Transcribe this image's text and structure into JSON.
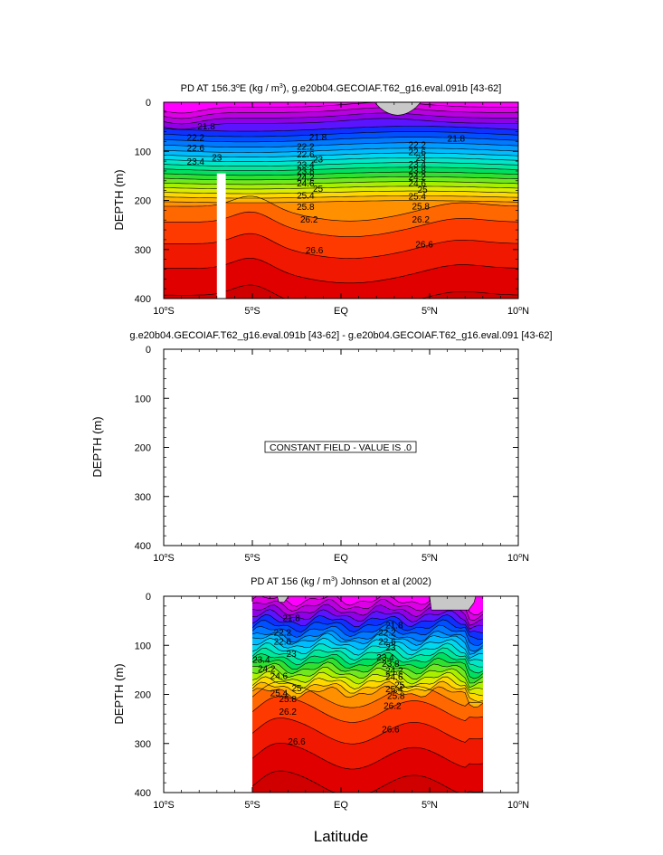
{
  "chart_data": [
    {
      "type": "contour",
      "title_parts": [
        "PD AT 156.3",
        "o",
        "E (kg / m",
        "3",
        "), g.e20b04.GECOIAF.T62_g16.eval.091b [43-62]"
      ],
      "xlabel": "",
      "ylabel": "DEPTH (m)",
      "xlim": [
        -10,
        10
      ],
      "ylim": [
        400,
        0
      ],
      "x_ticks": [
        -10,
        -5,
        0,
        5,
        10
      ],
      "x_tick_labels": [
        [
          "10",
          "o",
          "S"
        ],
        [
          "5",
          "o",
          "S"
        ],
        [
          "EQ",
          "",
          ""
        ],
        [
          "5",
          "o",
          "N"
        ],
        [
          "10",
          "o",
          "N"
        ]
      ],
      "y_ticks": [
        0,
        100,
        200,
        300,
        400
      ],
      "y_tick_labels": [
        "0",
        "100",
        "200",
        "300",
        "400"
      ],
      "data_x_range": [
        -10,
        10
      ],
      "masked_columns": [
        [
          -7.0,
          -6.5
        ]
      ],
      "gray_caps": [
        {
          "x": [
            1.9,
            4.5
          ],
          "depth": 30
        }
      ],
      "contour_labels": [
        {
          "text": "21.8",
          "x": -7.6,
          "y": 50
        },
        {
          "text": "21.8",
          "x": -1.3,
          "y": 72
        },
        {
          "text": "21.8",
          "x": 6.5,
          "y": 75
        },
        {
          "text": "22.2",
          "x": -8.2,
          "y": 73
        },
        {
          "text": "22.6",
          "x": -8.2,
          "y": 94
        },
        {
          "text": "23",
          "x": -7.0,
          "y": 113
        },
        {
          "text": "23.4",
          "x": -8.2,
          "y": 122
        },
        {
          "text": "22.2",
          "x": -2.0,
          "y": 91
        },
        {
          "text": "22.6",
          "x": -2.0,
          "y": 107
        },
        {
          "text": "23",
          "x": -1.3,
          "y": 117
        },
        {
          "text": "23.4",
          "x": -2.0,
          "y": 128
        },
        {
          "text": "23.8",
          "x": -2.0,
          "y": 141
        },
        {
          "text": "24.2",
          "x": -2.0,
          "y": 154
        },
        {
          "text": "24.6",
          "x": -2.0,
          "y": 166
        },
        {
          "text": "25",
          "x": -1.3,
          "y": 177
        },
        {
          "text": "25.4",
          "x": -2.0,
          "y": 191
        },
        {
          "text": "25.8",
          "x": -2.0,
          "y": 214
        },
        {
          "text": "26.2",
          "x": -1.8,
          "y": 240
        },
        {
          "text": "26.6",
          "x": -1.5,
          "y": 302
        },
        {
          "text": "22.2",
          "x": 4.3,
          "y": 88
        },
        {
          "text": "22.6",
          "x": 4.3,
          "y": 102
        },
        {
          "text": "23",
          "x": 4.5,
          "y": 114
        },
        {
          "text": "23.4",
          "x": 4.3,
          "y": 127
        },
        {
          "text": "23.8",
          "x": 4.3,
          "y": 140
        },
        {
          "text": "24.2",
          "x": 4.3,
          "y": 153
        },
        {
          "text": "24.6",
          "x": 4.3,
          "y": 166
        },
        {
          "text": "25",
          "x": 4.6,
          "y": 179
        },
        {
          "text": "25.4",
          "x": 4.3,
          "y": 193
        },
        {
          "text": "25.8",
          "x": 4.5,
          "y": 213
        },
        {
          "text": "26.2",
          "x": 4.5,
          "y": 240
        },
        {
          "text": "26.6",
          "x": 4.7,
          "y": 290
        }
      ]
    },
    {
      "type": "contour",
      "title": "g.e20b04.GECOIAF.T62_g16.eval.091b [43-62] - g.e20b04.GECOIAF.T62_g16.eval.091 [43-62]",
      "ylabel": "DEPTH (m)",
      "xlim": [
        -10,
        10
      ],
      "ylim": [
        400,
        0
      ],
      "x_ticks": [
        -10,
        -5,
        0,
        5,
        10
      ],
      "x_tick_labels": [
        [
          "10",
          "o",
          "S"
        ],
        [
          "5",
          "o",
          "S"
        ],
        [
          "EQ",
          "",
          ""
        ],
        [
          "5",
          "o",
          "N"
        ],
        [
          "10",
          "o",
          "N"
        ]
      ],
      "y_ticks": [
        0,
        100,
        200,
        300,
        400
      ],
      "y_tick_labels": [
        "0",
        "100",
        "200",
        "300",
        "400"
      ],
      "constant_field_label": "CONSTANT FIELD - VALUE IS .0",
      "constant_value": 0.0
    },
    {
      "type": "contour",
      "title_parts": [
        "PD AT 156 (kg / m",
        "3",
        ") Johnson et al (2002)"
      ],
      "ylabel": "DEPTH (m)",
      "xlabel": "Latitude",
      "xlim": [
        -10,
        10
      ],
      "ylim": [
        400,
        0
      ],
      "x_ticks": [
        -10,
        -5,
        0,
        5,
        10
      ],
      "x_tick_labels": [
        [
          "10",
          "o",
          "S"
        ],
        [
          "5",
          "o",
          "S"
        ],
        [
          "EQ",
          "",
          ""
        ],
        [
          "5",
          "o",
          "N"
        ],
        [
          "10",
          "o",
          "N"
        ]
      ],
      "y_ticks": [
        0,
        100,
        200,
        300,
        400
      ],
      "y_tick_labels": [
        "0",
        "100",
        "200",
        "300",
        "400"
      ],
      "data_x_range": [
        -5,
        8
      ],
      "gray_caps": [
        {
          "x": [
            -3.6,
            -2.8
          ],
          "depth": 12
        },
        {
          "x": [
            5.0,
            7.6
          ],
          "depth": 28
        }
      ],
      "contour_labels": [
        {
          "text": "21.8",
          "x": -2.8,
          "y": 45
        },
        {
          "text": "22.2",
          "x": -3.3,
          "y": 75
        },
        {
          "text": "22.6",
          "x": -3.3,
          "y": 93
        },
        {
          "text": "23",
          "x": -2.8,
          "y": 118
        },
        {
          "text": "23.4",
          "x": -4.5,
          "y": 130
        },
        {
          "text": "24.2",
          "x": -4.2,
          "y": 148
        },
        {
          "text": "24.6",
          "x": -3.5,
          "y": 163
        },
        {
          "text": "25",
          "x": -2.5,
          "y": 188
        },
        {
          "text": "25.4",
          "x": -3.5,
          "y": 198
        },
        {
          "text": "25.8",
          "x": -3.0,
          "y": 210
        },
        {
          "text": "26.2",
          "x": -3.0,
          "y": 236
        },
        {
          "text": "26.6",
          "x": -2.5,
          "y": 297
        },
        {
          "text": "21.8",
          "x": 3.0,
          "y": 60
        },
        {
          "text": "22.2",
          "x": 2.6,
          "y": 75
        },
        {
          "text": "22.6",
          "x": 2.6,
          "y": 93
        },
        {
          "text": "23",
          "x": 2.8,
          "y": 105
        },
        {
          "text": "23.4",
          "x": 2.5,
          "y": 125
        },
        {
          "text": "23.8",
          "x": 2.8,
          "y": 138
        },
        {
          "text": "24.2",
          "x": 3.0,
          "y": 152
        },
        {
          "text": "24.6",
          "x": 3.0,
          "y": 165
        },
        {
          "text": "25",
          "x": 3.3,
          "y": 182
        },
        {
          "text": "25.4",
          "x": 3.0,
          "y": 190
        },
        {
          "text": "25.8",
          "x": 3.1,
          "y": 204
        },
        {
          "text": "26.2",
          "x": 2.9,
          "y": 224
        },
        {
          "text": "26.6",
          "x": 2.8,
          "y": 272
        }
      ]
    }
  ],
  "colors": {
    "layers": [
      "#ff00ff",
      "#dd00e6",
      "#b800e0",
      "#8f00e8",
      "#5a14ff",
      "#1030ff",
      "#0050ff",
      "#0078ff",
      "#009cff",
      "#00bcff",
      "#00d8f0",
      "#00e6c8",
      "#00e89a",
      "#00e060",
      "#30e030",
      "#70e820",
      "#a8f000",
      "#dcec00",
      "#ffd800",
      "#ffb400",
      "#ff9000",
      "#ff6800",
      "#ff3a00",
      "#f01800",
      "#e00000",
      "#d00000",
      "#c20000",
      "#b20000"
    ],
    "mask": "#c8c8c8"
  }
}
